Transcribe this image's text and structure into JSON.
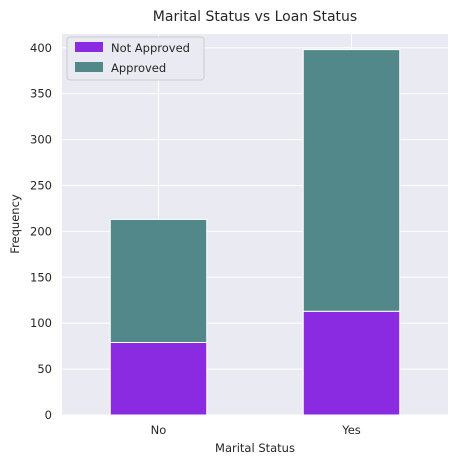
{
  "chart_data": {
    "type": "bar",
    "stacked": true,
    "title": "Marital Status vs Loan Status",
    "xlabel": "Marital Status",
    "ylabel": "Frequency",
    "categories": [
      "No",
      "Yes"
    ],
    "ylim": [
      0,
      415
    ],
    "yticks": [
      0,
      50,
      100,
      150,
      200,
      250,
      300,
      350,
      400
    ],
    "grid": true,
    "legend_position": "top-left",
    "series": [
      {
        "name": "Not Approved",
        "values": [
          79,
          113
        ],
        "color": "#8a2be2"
      },
      {
        "name": "Approved",
        "values": [
          134,
          285
        ],
        "color": "#52888a"
      }
    ]
  }
}
